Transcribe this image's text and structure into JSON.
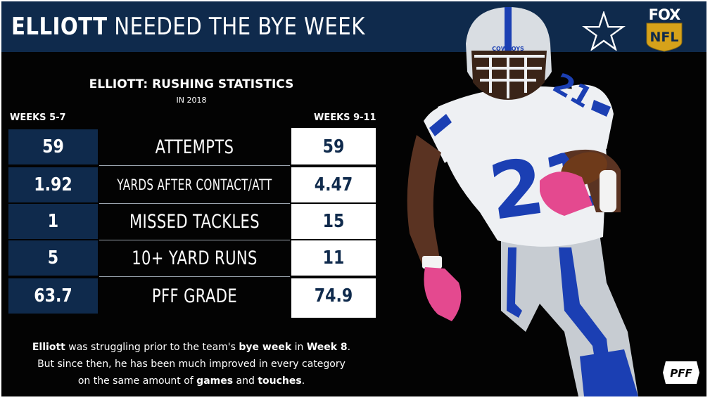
{
  "header": {
    "title_bold": "ELLIOTT",
    "title_rest": " NEEDED THE BYE WEEK"
  },
  "brand": {
    "fox_text": "FOX",
    "nfl_text": "NFL",
    "pff_text": "PFF",
    "star_icon": "dallas-cowboys-star-icon"
  },
  "chart": {
    "title": "ELLIOTT: RUSHING STATISTICS",
    "subtitle": "IN 2018",
    "left_label": "WEEKS 5-7",
    "right_label": "WEEKS 9-11"
  },
  "rows": [
    {
      "stat": "ATTEMPTS",
      "left": "59",
      "right": "59"
    },
    {
      "stat": "YARDS AFTER CONTACT/ATT",
      "left": "1.92",
      "right": "4.47"
    },
    {
      "stat": "MISSED TACKLES",
      "left": "1",
      "right": "15"
    },
    {
      "stat": "10+ YARD RUNS",
      "left": "5",
      "right": "11"
    },
    {
      "stat": "PFF GRADE",
      "left": "63.7",
      "right": "74.9"
    }
  ],
  "caption": {
    "l1_a": "Elliott",
    "l1_b": " was struggling prior to the team's ",
    "l1_c": "bye week",
    "l1_d": " in ",
    "l1_e": "Week 8",
    "l1_f": ".",
    "l2": "But since then, he has been much improved in every category",
    "l3_a": "on the same amount of ",
    "l3_b": "games",
    "l3_c": " and ",
    "l3_d": "touches",
    "l3_e": "."
  },
  "player": {
    "jersey_number": "21",
    "helmet_text": "COWBOYS",
    "image": "player-photo"
  },
  "colors": {
    "navy": "#0f2a4c",
    "background": "#030303",
    "white": "#ffffff",
    "pink": "#e4498f",
    "jersey_blue": "#1b3fb3"
  }
}
